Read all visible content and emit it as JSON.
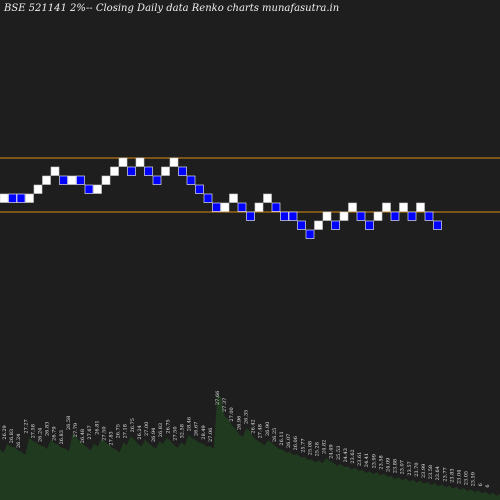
{
  "chart_data": {
    "type": "renko",
    "title": "BSE 521141 2%-- Closing Daily data Renko charts munafasutra.in",
    "colors": {
      "background": "#1e1e1e",
      "up_brick": "#ffffff",
      "down_brick": "#0000ff",
      "level_line": "#d98e14",
      "volume_fill": "#1f3a1f",
      "volume_text": "#e8e8e8"
    },
    "bricks": [
      {
        "dir": "up",
        "level": 0
      },
      {
        "dir": "down",
        "level": 0
      },
      {
        "dir": "down",
        "level": 0
      },
      {
        "dir": "up",
        "level": 0
      },
      {
        "dir": "up",
        "level": 1
      },
      {
        "dir": "up",
        "level": 2
      },
      {
        "dir": "up",
        "level": 3
      },
      {
        "dir": "down",
        "level": 2
      },
      {
        "dir": "up",
        "level": 2
      },
      {
        "dir": "down",
        "level": 2
      },
      {
        "dir": "down",
        "level": 1
      },
      {
        "dir": "up",
        "level": 1
      },
      {
        "dir": "up",
        "level": 2
      },
      {
        "dir": "up",
        "level": 3
      },
      {
        "dir": "up",
        "level": 4
      },
      {
        "dir": "down",
        "level": 3
      },
      {
        "dir": "up",
        "level": 4
      },
      {
        "dir": "down",
        "level": 3
      },
      {
        "dir": "down",
        "level": 2
      },
      {
        "dir": "up",
        "level": 3
      },
      {
        "dir": "up",
        "level": 4
      },
      {
        "dir": "down",
        "level": 3
      },
      {
        "dir": "down",
        "level": 2
      },
      {
        "dir": "down",
        "level": 1
      },
      {
        "dir": "down",
        "level": 0
      },
      {
        "dir": "down",
        "level": -1
      },
      {
        "dir": "up",
        "level": -1
      },
      {
        "dir": "up",
        "level": 0
      },
      {
        "dir": "down",
        "level": -1
      },
      {
        "dir": "down",
        "level": -2
      },
      {
        "dir": "up",
        "level": -1
      },
      {
        "dir": "up",
        "level": 0
      },
      {
        "dir": "down",
        "level": -1
      },
      {
        "dir": "down",
        "level": -2
      },
      {
        "dir": "down",
        "level": -2
      },
      {
        "dir": "down",
        "level": -3
      },
      {
        "dir": "down",
        "level": -4
      },
      {
        "dir": "up",
        "level": -3
      },
      {
        "dir": "up",
        "level": -2
      },
      {
        "dir": "down",
        "level": -3
      },
      {
        "dir": "up",
        "level": -2
      },
      {
        "dir": "up",
        "level": -1
      },
      {
        "dir": "down",
        "level": -2
      },
      {
        "dir": "down",
        "level": -3
      },
      {
        "dir": "up",
        "level": -2
      },
      {
        "dir": "up",
        "level": -1
      },
      {
        "dir": "down",
        "level": -2
      },
      {
        "dir": "up",
        "level": -1
      },
      {
        "dir": "down",
        "level": -2
      },
      {
        "dir": "up",
        "level": -1
      },
      {
        "dir": "down",
        "level": -2
      },
      {
        "dir": "down",
        "level": -3
      }
    ],
    "levels": {
      "upper_line": 4.5,
      "lower_line": -1.5
    },
    "volume_labels": [
      "26.29",
      "26.83",
      "26.24",
      "27.27",
      "27.58",
      "26.24",
      "26.83",
      "26.79",
      "26.83",
      "26.58",
      "27.79",
      "26.48",
      "27.67",
      "26.81",
      "27.50",
      "27.83",
      "26.75",
      "27.18",
      "26.75",
      "26.24",
      "27.00",
      "26.94",
      "26.83",
      "26.75",
      "27.50",
      "32.58",
      "28.46",
      "26.67",
      "28.49",
      "27.06",
      "27.66",
      "27.37",
      "27.00",
      "26.96",
      "26.35",
      "26.42",
      "27.48",
      "26.90",
      "26.25",
      "26.11",
      "26.07",
      "26.06",
      "25.77",
      "25.08",
      "25.28",
      "24.82",
      "24.49",
      "25.53",
      "24.43",
      "23.62",
      "23.61",
      "24.41",
      "23.99",
      "23.58",
      "24.09",
      "23.88",
      "23.07",
      "23.57",
      "23.70",
      "23.99",
      "23.58",
      "23.64",
      "23.77",
      "23.83",
      "23.04",
      "23.05",
      "23.59",
      "6",
      "6"
    ],
    "volume_profile": [
      0.42,
      0.47,
      0.44,
      0.4,
      0.52,
      0.48,
      0.45,
      0.5,
      0.46,
      0.43,
      0.55,
      0.49,
      0.44,
      0.47,
      0.51,
      0.46,
      0.42,
      0.48,
      0.53,
      0.47,
      0.5,
      0.45,
      0.49,
      0.52,
      0.46,
      0.48,
      0.54,
      0.5,
      0.47,
      0.45,
      0.88,
      0.7,
      0.62,
      0.55,
      0.6,
      0.52,
      0.48,
      0.5,
      0.45,
      0.42,
      0.4,
      0.38,
      0.36,
      0.34,
      0.33,
      0.35,
      0.31,
      0.3,
      0.28,
      0.27,
      0.25,
      0.24,
      0.23,
      0.22,
      0.2,
      0.19,
      0.18,
      0.17,
      0.16,
      0.15,
      0.14,
      0.13,
      0.12,
      0.11,
      0.1,
      0.09,
      0.08,
      0.07,
      0.06,
      0.05
    ]
  }
}
